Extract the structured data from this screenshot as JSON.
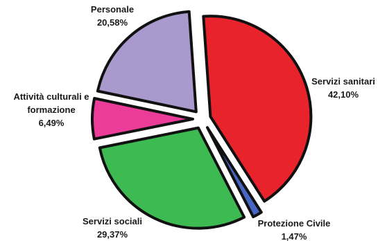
{
  "chart_data": {
    "type": "pie",
    "title": "",
    "slices": [
      {
        "label": "Servizi sanitari",
        "value": 42.1,
        "display": "42,10%",
        "color": "#e8232b"
      },
      {
        "label": "Protezione Civile",
        "value": 1.47,
        "display": "1,47%",
        "color": "#4766c4"
      },
      {
        "label": "Servizi sociali",
        "value": 29.37,
        "display": "29,37%",
        "color": "#3dbb52"
      },
      {
        "label": "Attività culturali e formazione",
        "value": 6.49,
        "display": "6,49%",
        "color": "#ec3c9a"
      },
      {
        "label": "Personale",
        "value": 20.58,
        "display": "20,58%",
        "color": "#a999cc"
      }
    ],
    "label_lines": [
      [
        "Servizi sanitari"
      ],
      [
        "Protezione Civile"
      ],
      [
        "Servizi sociali"
      ],
      [
        "Attività culturali e",
        "formazione"
      ],
      [
        "Personale"
      ]
    ],
    "exploded": true,
    "legend": "none"
  }
}
